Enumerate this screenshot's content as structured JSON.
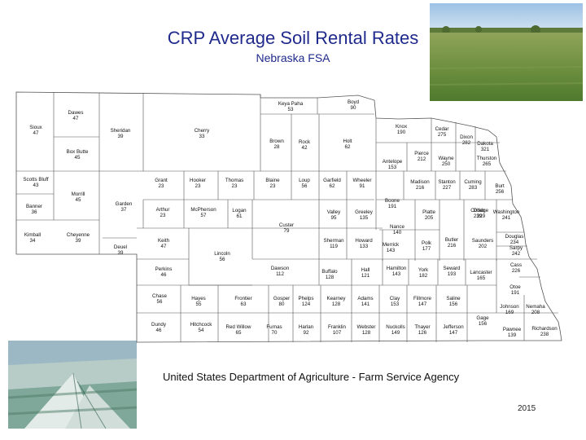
{
  "title": "CRP Average Soil Rental Rates",
  "subtitle": "Nebraska FSA",
  "footer": "United States Department of Agriculture - Farm Service Agency",
  "year": "2015",
  "colors": {
    "title": "#1f2a8c",
    "border": "#555555"
  },
  "counties": [
    {
      "name": "Sioux",
      "value": "47"
    },
    {
      "name": "Dawes",
      "value": "47"
    },
    {
      "name": "Box Butte",
      "value": "45"
    },
    {
      "name": "Sheridan",
      "value": "39"
    },
    {
      "name": "Cherry",
      "value": "33"
    },
    {
      "name": "Keya Paha",
      "value": "53"
    },
    {
      "name": "Boyd",
      "value": "90"
    },
    {
      "name": "Brown",
      "value": "28"
    },
    {
      "name": "Rock",
      "value": "42"
    },
    {
      "name": "Holt",
      "value": "62"
    },
    {
      "name": "Knox",
      "value": "190"
    },
    {
      "name": "Cedar",
      "value": "275"
    },
    {
      "name": "Dixon",
      "value": "282"
    },
    {
      "name": "Dakota",
      "value": "321"
    },
    {
      "name": "Antelope",
      "value": "153"
    },
    {
      "name": "Pierce",
      "value": "212"
    },
    {
      "name": "Wayne",
      "value": "250"
    },
    {
      "name": "Thurston",
      "value": "265"
    },
    {
      "name": "Scotts Bluff",
      "value": "43"
    },
    {
      "name": "Morrill",
      "value": "45"
    },
    {
      "name": "Banner",
      "value": "36"
    },
    {
      "name": "Garden",
      "value": "37"
    },
    {
      "name": "Grant",
      "value": "23"
    },
    {
      "name": "Hooker",
      "value": "23"
    },
    {
      "name": "Thomas",
      "value": "23"
    },
    {
      "name": "Blaine",
      "value": "23"
    },
    {
      "name": "Loup",
      "value": "56"
    },
    {
      "name": "Garfield",
      "value": "62"
    },
    {
      "name": "Wheeler",
      "value": "91"
    },
    {
      "name": "Madison",
      "value": "216"
    },
    {
      "name": "Stanton",
      "value": "227"
    },
    {
      "name": "Cuming",
      "value": "283"
    },
    {
      "name": "Burt",
      "value": "256"
    },
    {
      "name": "Boone",
      "value": "191"
    },
    {
      "name": "Kimball",
      "value": "34"
    },
    {
      "name": "Cheyenne",
      "value": "39"
    },
    {
      "name": "Deuel",
      "value": "39"
    },
    {
      "name": "Arthur",
      "value": "23"
    },
    {
      "name": "McPherson",
      "value": "57"
    },
    {
      "name": "Logan",
      "value": "61"
    },
    {
      "name": "Custer",
      "value": "79"
    },
    {
      "name": "Valley",
      "value": "95"
    },
    {
      "name": "Greeley",
      "value": "135"
    },
    {
      "name": "Platte",
      "value": "205"
    },
    {
      "name": "Colfax",
      "value": "239"
    },
    {
      "name": "Dodge",
      "value": "229"
    },
    {
      "name": "Washington",
      "value": "241"
    },
    {
      "name": "Nance",
      "value": "140"
    },
    {
      "name": "Keith",
      "value": "47"
    },
    {
      "name": "Lincoln",
      "value": "56"
    },
    {
      "name": "Sherman",
      "value": "119"
    },
    {
      "name": "Howard",
      "value": "133"
    },
    {
      "name": "Merrick",
      "value": "143"
    },
    {
      "name": "Polk",
      "value": "177"
    },
    {
      "name": "Butler",
      "value": "216"
    },
    {
      "name": "Saunders",
      "value": "202"
    },
    {
      "name": "Douglas",
      "value": "234"
    },
    {
      "name": "Sarpy",
      "value": "242"
    },
    {
      "name": "Perkins",
      "value": "46"
    },
    {
      "name": "Dawson",
      "value": "112"
    },
    {
      "name": "Buffalo",
      "value": "128"
    },
    {
      "name": "Hall",
      "value": "121"
    },
    {
      "name": "Hamilton",
      "value": "143"
    },
    {
      "name": "York",
      "value": "182"
    },
    {
      "name": "Seward",
      "value": "193"
    },
    {
      "name": "Lancaster",
      "value": "165"
    },
    {
      "name": "Cass",
      "value": "226"
    },
    {
      "name": "Otoe",
      "value": "191"
    },
    {
      "name": "Chase",
      "value": "56"
    },
    {
      "name": "Hayes",
      "value": "55"
    },
    {
      "name": "Frontier",
      "value": "63"
    },
    {
      "name": "Gosper",
      "value": "80"
    },
    {
      "name": "Phelps",
      "value": "124"
    },
    {
      "name": "Kearney",
      "value": "128"
    },
    {
      "name": "Adams",
      "value": "141"
    },
    {
      "name": "Clay",
      "value": "153"
    },
    {
      "name": "Fillmore",
      "value": "147"
    },
    {
      "name": "Saline",
      "value": "156"
    },
    {
      "name": "Johnson",
      "value": "169"
    },
    {
      "name": "Nemaha",
      "value": "208"
    },
    {
      "name": "Gage",
      "value": "156"
    },
    {
      "name": "Dundy",
      "value": "46"
    },
    {
      "name": "Hitchcock",
      "value": "54"
    },
    {
      "name": "Red Willow",
      "value": "65"
    },
    {
      "name": "Furnas",
      "value": "70"
    },
    {
      "name": "Harlan",
      "value": "92"
    },
    {
      "name": "Franklin",
      "value": "107"
    },
    {
      "name": "Webster",
      "value": "128"
    },
    {
      "name": "Nuckolls",
      "value": "149"
    },
    {
      "name": "Thayer",
      "value": "126"
    },
    {
      "name": "Jefferson",
      "value": "147"
    },
    {
      "name": "Pawnee",
      "value": "139"
    },
    {
      "name": "Richardson",
      "value": "238"
    }
  ]
}
